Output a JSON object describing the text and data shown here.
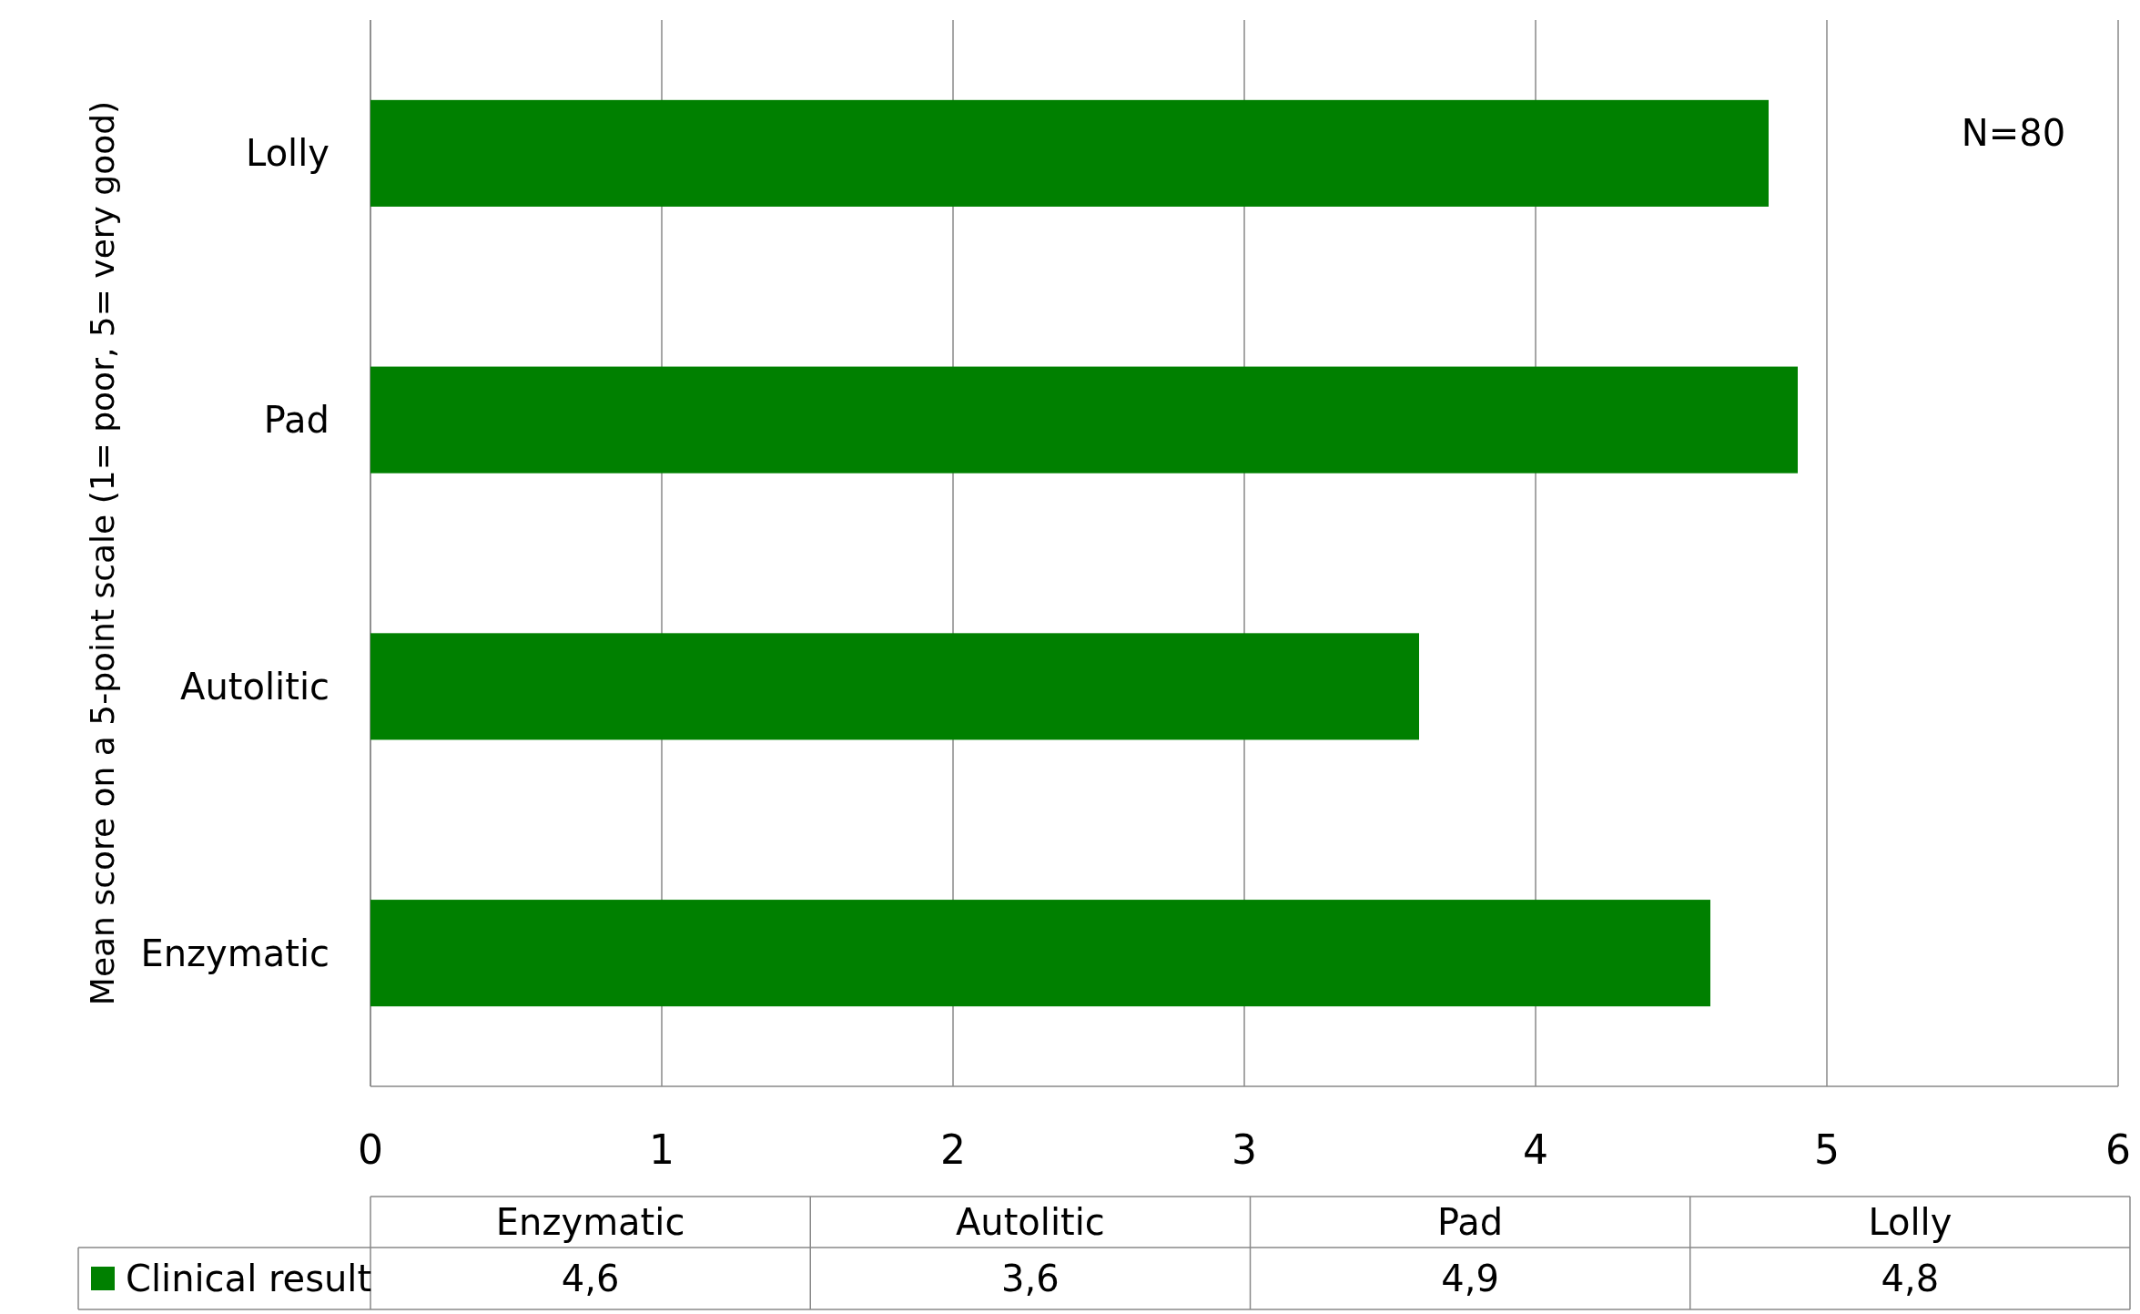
{
  "chart_data": {
    "type": "bar",
    "orientation": "horizontal",
    "ylabel": "Mean score on a 5-point scale (1= poor, 5= very good)",
    "categories": [
      "Lolly",
      "Pad",
      "Autolitic",
      "Enzymatic"
    ],
    "series": [
      {
        "name": "Clinical result",
        "color": "#008000",
        "values": [
          4.8,
          4.9,
          3.6,
          4.6
        ]
      }
    ],
    "xlim": [
      0,
      6
    ],
    "xticks": [
      0,
      1,
      2,
      3,
      4,
      5,
      6
    ],
    "grid": "x",
    "legend": "bottom",
    "annotations": [
      "N=80",
      "4,6",
      "3,6",
      "4,9",
      "4,8"
    ]
  }
}
